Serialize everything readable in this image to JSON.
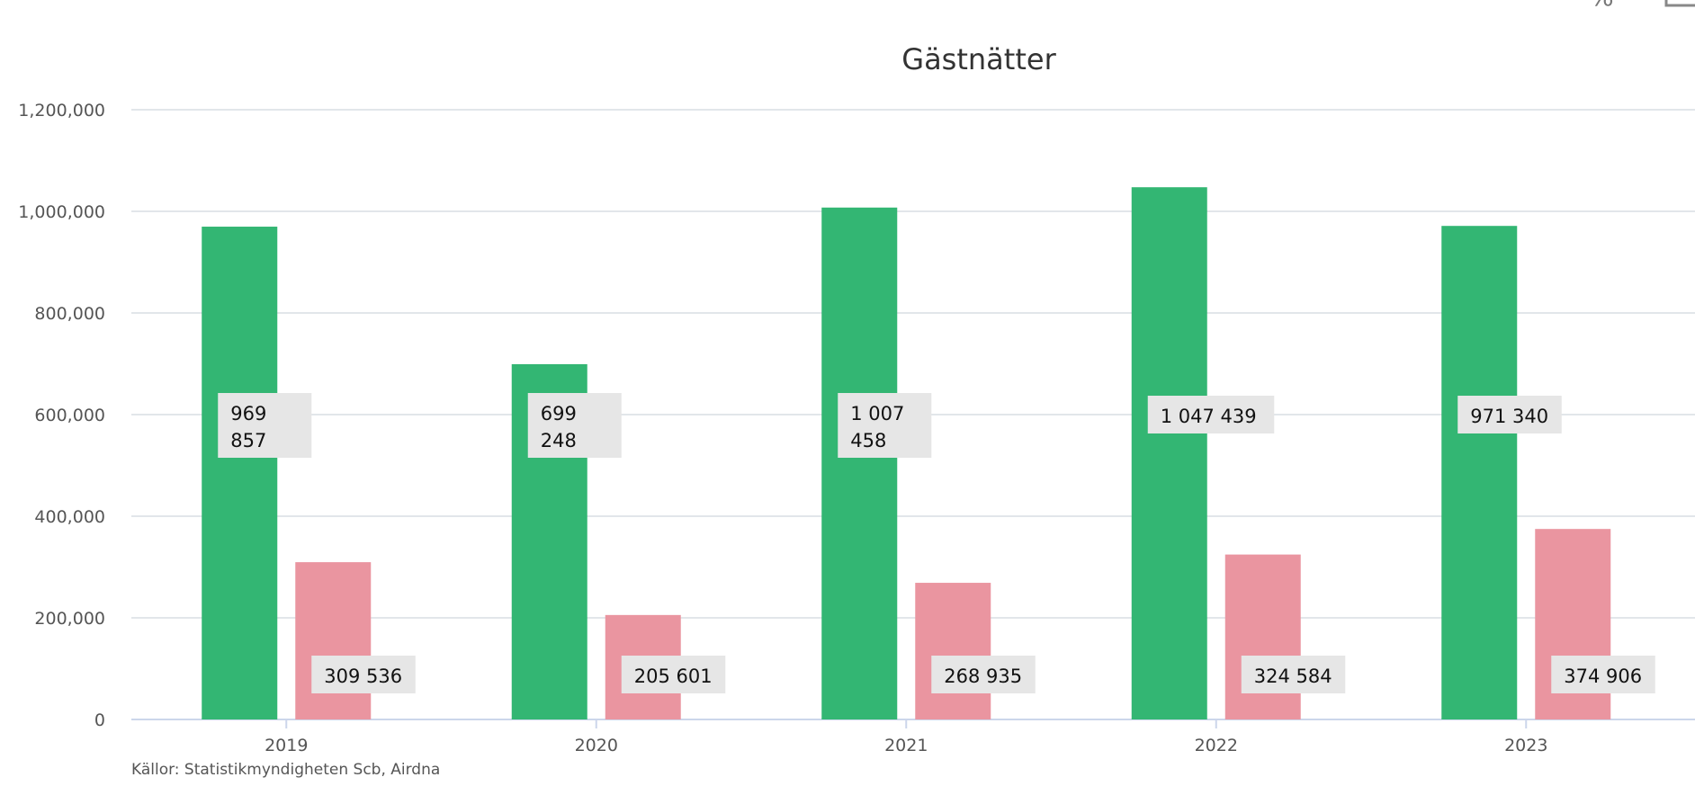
{
  "chart_data": {
    "type": "bar",
    "title": "Gästnätter",
    "categories": [
      "2019",
      "2020",
      "2021",
      "2022",
      "2023"
    ],
    "series": [
      {
        "color": "#33b673",
        "values": [
          969857,
          699248,
          1007458,
          1047439,
          971340
        ],
        "labels": [
          [
            "969",
            "857"
          ],
          [
            "699",
            "248"
          ],
          [
            "1 007",
            "458"
          ],
          [
            "1 047 439"
          ],
          [
            "971 340"
          ]
        ]
      },
      {
        "color": "#ea95a0",
        "values": [
          309536,
          205601,
          268935,
          324584,
          374906
        ],
        "labels": [
          [
            "309 536"
          ],
          [
            "205 601"
          ],
          [
            "268 935"
          ],
          [
            "324 584"
          ],
          [
            "374 906"
          ]
        ]
      }
    ],
    "ylim": [
      0,
      1200000
    ],
    "yticks": [
      "0",
      "200,000",
      "400,000",
      "600,000",
      "800,000",
      "1,000,000",
      "1,200,000"
    ],
    "grid": true,
    "legend": "none"
  },
  "source_note": "Källor: Statistikmyndigheten Scb, Airdna",
  "colors": {
    "grid": "#e2e6ea",
    "axis": "#ccd6eb",
    "label_box": "#e6e6e6"
  }
}
